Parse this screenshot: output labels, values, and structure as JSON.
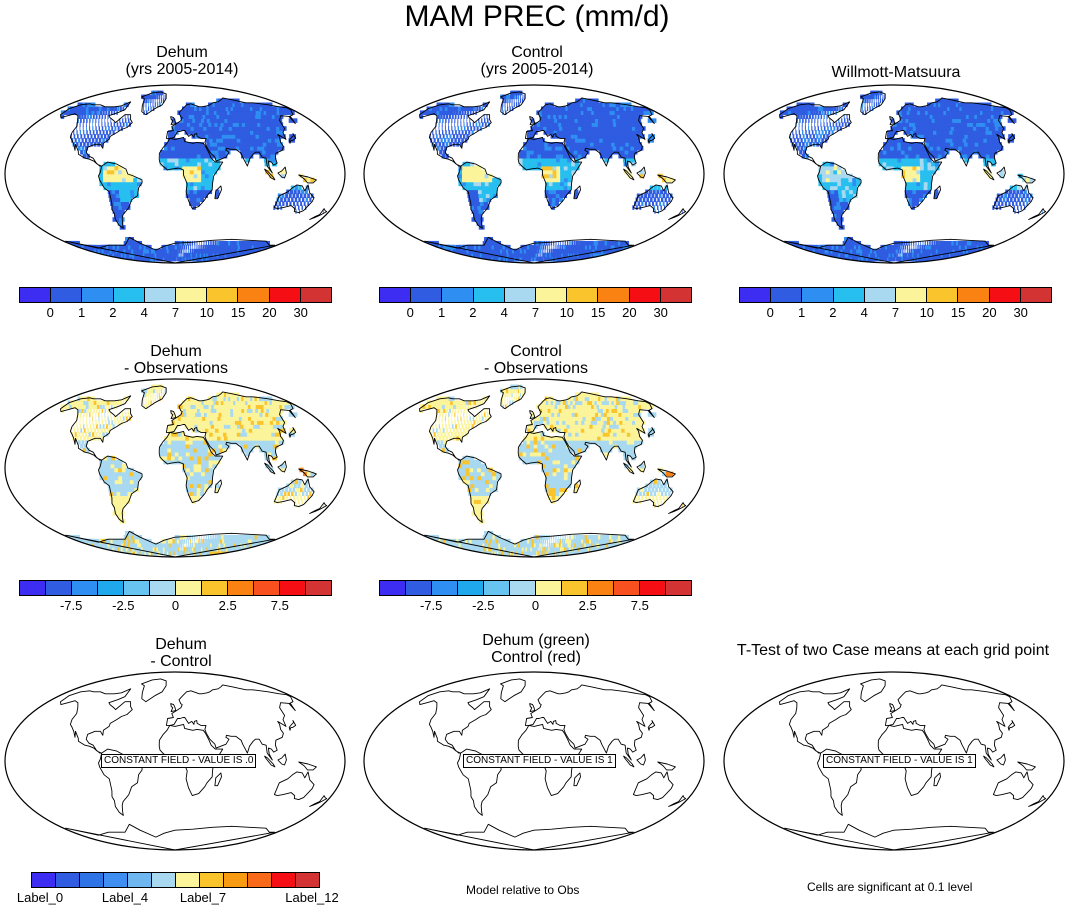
{
  "figure": {
    "title": "MAM PREC (mm/d)",
    "panels": [
      {
        "title_lines": [
          "Dehum",
          "(yrs 2005-2014)"
        ],
        "palette": "abs"
      },
      {
        "title_lines": [
          "Control",
          "(yrs 2005-2014)"
        ],
        "palette": "abs"
      },
      {
        "title_lines": [
          "Willmott-Matsuura"
        ],
        "palette": "abs"
      },
      {
        "title_lines": [
          "Dehum",
          "- Observations"
        ],
        "palette": "diff"
      },
      {
        "title_lines": [
          "Control",
          "- Observations"
        ],
        "palette": "diff"
      },
      {
        "title_lines": [
          "Dehum",
          "- Control"
        ],
        "constant_text": "CONSTANT FIELD - VALUE IS .0"
      },
      {
        "title_lines": [
          "Dehum (green)",
          "Control (red)"
        ],
        "constant_text": "CONSTANT FIELD - VALUE IS 1"
      },
      {
        "title_lines": [
          "T-Test of two Case means at each grid point"
        ],
        "constant_text": "CONSTANT FIELD - VALUE IS 1"
      }
    ],
    "colorbars": {
      "abs": {
        "colors": [
          "#3d2cf2",
          "#2f5ce0",
          "#2f8ef2",
          "#27bff0",
          "#a9d9f0",
          "#fbf49a",
          "#f9c42c",
          "#f98213",
          "#f50f15",
          "#d33333"
        ],
        "labels": [
          "0",
          "1",
          "2",
          "4",
          "7",
          "10",
          "15",
          "20",
          "30"
        ]
      },
      "diff": {
        "colors": [
          "#3d2cf2",
          "#2f5ce0",
          "#2f8ef2",
          "#1fa8ec",
          "#67c3ef",
          "#a9d9f0",
          "#fbf49a",
          "#f9c42c",
          "#f98213",
          "#f8501e",
          "#f50f15",
          "#d33333"
        ],
        "labels": [
          "-7.5",
          "-2.5",
          "0",
          "2.5",
          "7.5"
        ]
      },
      "labels": {
        "colors": [
          "#3d2cf2",
          "#2f5ce0",
          "#2f74e6",
          "#3f8ef2",
          "#6eb7f0",
          "#a9d9f0",
          "#fbf49a",
          "#f9c42c",
          "#f99a13",
          "#f86a1a",
          "#f50f15",
          "#d33333"
        ],
        "labels": [
          "Label_0",
          "Label_4",
          "Label_7",
          "Label_12"
        ]
      }
    },
    "footnotes": {
      "middle": "Model relative to Obs",
      "right": "Cells are significant at 0.1 level"
    }
  }
}
